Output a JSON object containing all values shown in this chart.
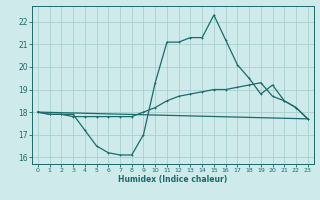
{
  "title": "",
  "xlabel": "Humidex (Indice chaleur)",
  "xlim": [
    -0.5,
    23.5
  ],
  "ylim": [
    15.7,
    22.7
  ],
  "yticks": [
    16,
    17,
    18,
    19,
    20,
    21,
    22
  ],
  "xticks": [
    0,
    1,
    2,
    3,
    4,
    5,
    6,
    7,
    8,
    9,
    10,
    11,
    12,
    13,
    14,
    15,
    16,
    17,
    18,
    19,
    20,
    21,
    22,
    23
  ],
  "bg_color": "#ceeaea",
  "grid_color": "#aacfcf",
  "line_color": "#1a6b6b",
  "line1_x": [
    0,
    1,
    2,
    3,
    4,
    5,
    6,
    7,
    8,
    9,
    10,
    11,
    12,
    13,
    14,
    15,
    16,
    17,
    18,
    19,
    20,
    21,
    22,
    23
  ],
  "line1_y": [
    18.0,
    17.9,
    17.9,
    17.9,
    17.2,
    16.5,
    16.2,
    16.1,
    16.1,
    17.0,
    19.3,
    21.1,
    21.1,
    21.3,
    21.3,
    22.3,
    21.2,
    20.1,
    19.5,
    18.8,
    19.2,
    18.5,
    18.2,
    17.7
  ],
  "line2_x": [
    0,
    1,
    2,
    3,
    4,
    5,
    6,
    7,
    8,
    9,
    10,
    11,
    12,
    13,
    14,
    15,
    16,
    17,
    18,
    19,
    20,
    21,
    22,
    23
  ],
  "line2_y": [
    18.0,
    17.9,
    17.9,
    17.8,
    17.8,
    17.8,
    17.8,
    17.8,
    17.8,
    18.0,
    18.2,
    18.5,
    18.7,
    18.8,
    18.9,
    19.0,
    19.0,
    19.1,
    19.2,
    19.3,
    18.7,
    18.5,
    18.2,
    17.7
  ],
  "line3_x": [
    0,
    23
  ],
  "line3_y": [
    18.0,
    17.7
  ]
}
